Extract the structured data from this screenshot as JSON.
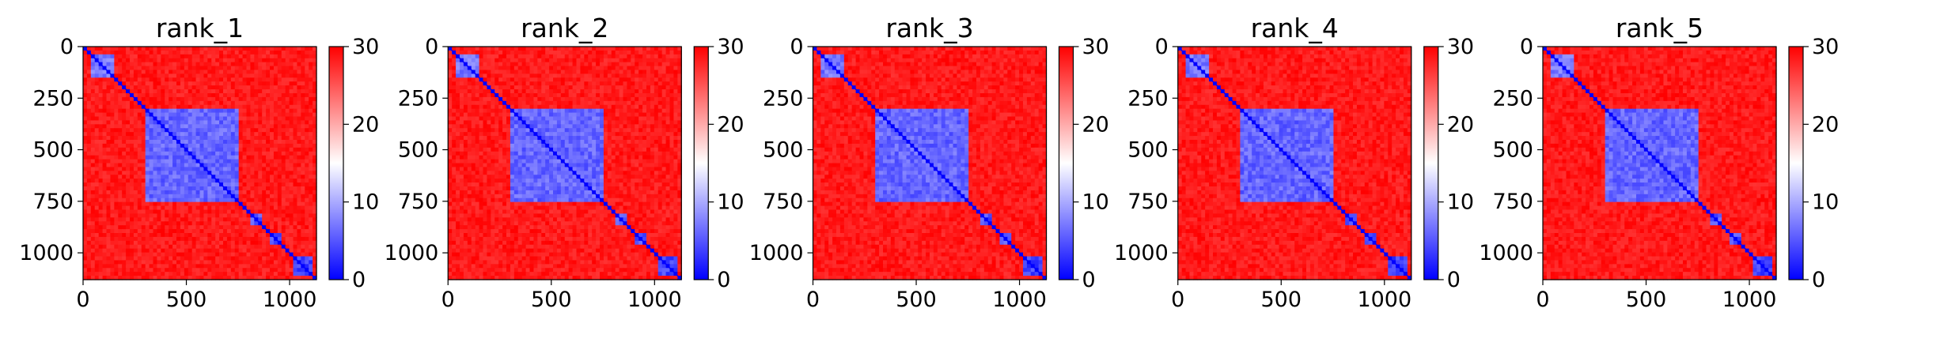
{
  "colors": {
    "low": "#0000ff",
    "mid": "#ffffff",
    "high": "#ff0000",
    "axis": "#000000"
  },
  "chart_data": [
    {
      "type": "heatmap",
      "title": "rank_1",
      "cmap": "bwr",
      "x_range": [
        0,
        1130
      ],
      "y_range": [
        0,
        1130
      ],
      "x_ticks": [
        0,
        500,
        1000
      ],
      "y_ticks": [
        0,
        250,
        500,
        750,
        1000
      ],
      "colorbar": {
        "range": [
          0,
          30
        ],
        "ticks": [
          0,
          10,
          20,
          30
        ]
      },
      "blocks": [
        {
          "from": 40,
          "to": 150,
          "value": 5
        },
        {
          "from": 300,
          "to": 750,
          "value": 4
        },
        {
          "from": 815,
          "to": 870,
          "value": 3
        },
        {
          "from": 910,
          "to": 960,
          "value": 3
        },
        {
          "from": 1010,
          "to": 1120,
          "value": 2
        }
      ]
    },
    {
      "type": "heatmap",
      "title": "rank_2",
      "cmap": "bwr",
      "x_range": [
        0,
        1130
      ],
      "y_range": [
        0,
        1130
      ],
      "x_ticks": [
        0,
        500,
        1000
      ],
      "y_ticks": [
        0,
        250,
        500,
        750,
        1000
      ],
      "colorbar": {
        "range": [
          0,
          30
        ],
        "ticks": [
          0,
          10,
          20,
          30
        ]
      },
      "blocks": [
        {
          "from": 40,
          "to": 150,
          "value": 5
        },
        {
          "from": 300,
          "to": 750,
          "value": 4
        },
        {
          "from": 815,
          "to": 870,
          "value": 3
        },
        {
          "from": 910,
          "to": 960,
          "value": 3
        },
        {
          "from": 1010,
          "to": 1120,
          "value": 2
        }
      ]
    },
    {
      "type": "heatmap",
      "title": "rank_3",
      "cmap": "bwr",
      "x_range": [
        0,
        1130
      ],
      "y_range": [
        0,
        1130
      ],
      "x_ticks": [
        0,
        500,
        1000
      ],
      "y_ticks": [
        0,
        250,
        500,
        750,
        1000
      ],
      "colorbar": {
        "range": [
          0,
          30
        ],
        "ticks": [
          0,
          10,
          20,
          30
        ]
      },
      "blocks": [
        {
          "from": 40,
          "to": 150,
          "value": 5
        },
        {
          "from": 300,
          "to": 750,
          "value": 4
        },
        {
          "from": 815,
          "to": 870,
          "value": 3
        },
        {
          "from": 910,
          "to": 960,
          "value": 3
        },
        {
          "from": 1010,
          "to": 1120,
          "value": 2
        }
      ]
    },
    {
      "type": "heatmap",
      "title": "rank_4",
      "cmap": "bwr",
      "x_range": [
        0,
        1130
      ],
      "y_range": [
        0,
        1130
      ],
      "x_ticks": [
        0,
        500,
        1000
      ],
      "y_ticks": [
        0,
        250,
        500,
        750,
        1000
      ],
      "colorbar": {
        "range": [
          0,
          30
        ],
        "ticks": [
          0,
          10,
          20,
          30
        ]
      },
      "blocks": [
        {
          "from": 40,
          "to": 150,
          "value": 5
        },
        {
          "from": 300,
          "to": 750,
          "value": 4
        },
        {
          "from": 815,
          "to": 870,
          "value": 3
        },
        {
          "from": 910,
          "to": 960,
          "value": 3
        },
        {
          "from": 1010,
          "to": 1120,
          "value": 2
        }
      ]
    },
    {
      "type": "heatmap",
      "title": "rank_5",
      "cmap": "bwr",
      "x_range": [
        0,
        1130
      ],
      "y_range": [
        0,
        1130
      ],
      "x_ticks": [
        0,
        500,
        1000
      ],
      "y_ticks": [
        0,
        250,
        500,
        750,
        1000
      ],
      "colorbar": {
        "range": [
          0,
          30
        ],
        "ticks": [
          0,
          10,
          20,
          30
        ]
      },
      "blocks": [
        {
          "from": 40,
          "to": 150,
          "value": 5
        },
        {
          "from": 300,
          "to": 750,
          "value": 4
        },
        {
          "from": 815,
          "to": 870,
          "value": 3
        },
        {
          "from": 910,
          "to": 960,
          "value": 3
        },
        {
          "from": 1010,
          "to": 1120,
          "value": 2
        }
      ]
    }
  ]
}
